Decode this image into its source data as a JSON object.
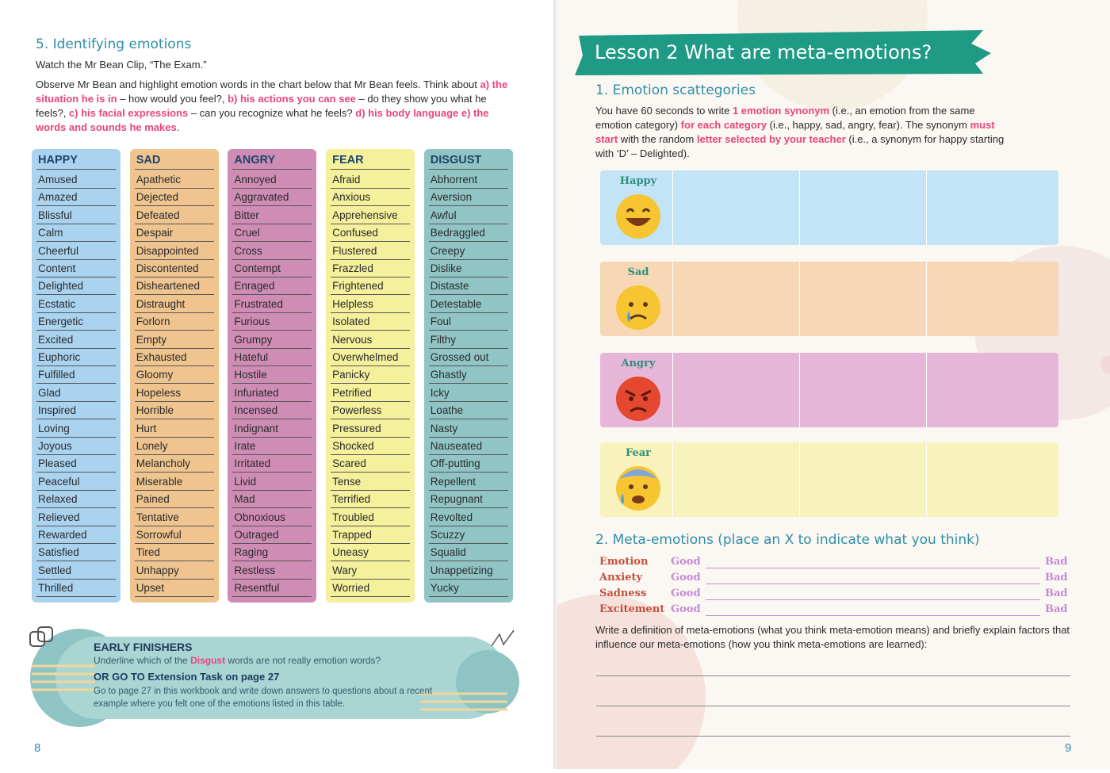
{
  "left_page": {
    "section_title": "5. Identifying emotions",
    "intro": "Watch the Mr Bean Clip, “The Exam.”",
    "instructions": [
      {
        "text": "Observe Mr Bean and highlight emotion words in the chart below that Mr Bean feels. Think about ",
        "emphasis": false
      },
      {
        "text": "a) the situation he is in",
        "emphasis": true
      },
      {
        "text": " – how would you feel?, ",
        "emphasis": false
      },
      {
        "text": "b) his actions you can see",
        "emphasis": true
      },
      {
        "text": " – do they show you what he feels?, ",
        "emphasis": false
      },
      {
        "text": "c) his facial expressions",
        "emphasis": true
      },
      {
        "text": " – can you recognize what he feels? ",
        "emphasis": false
      },
      {
        "text": "d) his body language  e) the words and sounds he makes",
        "emphasis": true
      },
      {
        "text": ".",
        "emphasis": false
      }
    ],
    "emotion_columns": [
      {
        "heading": "HAPPY",
        "color": "#aad3f0",
        "words": [
          "Amused",
          "Amazed",
          "Blissful",
          "Calm",
          "Cheerful",
          "Content",
          "Delighted",
          "Ecstatic",
          "Energetic",
          "Excited",
          "Euphoric",
          "Fulfilled",
          "Glad",
          "Inspired",
          "Loving",
          "Joyous",
          "Pleased",
          "Peaceful",
          "Relaxed",
          "Relieved",
          "Rewarded",
          "Satisfied",
          "Settled",
          "Thrilled"
        ]
      },
      {
        "heading": "SAD",
        "color": "#efc48f",
        "words": [
          "Apathetic",
          "Dejected",
          "Defeated",
          "Despair",
          "Disappointed",
          "Discontented",
          "Disheartened",
          "Distraught",
          "Forlorn",
          "Empty",
          "Exhausted",
          "Gloomy",
          "Hopeless",
          "Horrible",
          "Hurt",
          "Lonely",
          "Melancholy",
          "Miserable",
          "Pained",
          "Tentative",
          "Sorrowful",
          "Tired",
          "Unhappy",
          "Upset"
        ]
      },
      {
        "heading": "ANGRY",
        "color": "#cf8db5",
        "words": [
          "Annoyed",
          "Aggravated",
          "Bitter",
          "Cruel",
          "Cross",
          "Contempt",
          "Enraged",
          "Frustrated",
          "Furious",
          "Grumpy",
          "Hateful",
          "Hostile",
          "Infuriated",
          "Incensed",
          "Indignant",
          "Irate",
          "Irritated",
          "Livid",
          "Mad",
          "Obnoxious",
          "Outraged",
          "Raging",
          "Restless",
          "Resentful"
        ]
      },
      {
        "heading": "FEAR",
        "color": "#f5f09c",
        "words": [
          "Afraid",
          "Anxious",
          "Apprehensive",
          "Confused",
          "Flustered",
          "Frazzled",
          "Frightened",
          "Helpless",
          "Isolated",
          "Nervous",
          "Overwhelmed",
          "Panicky",
          "Petrified",
          "Powerless",
          "Pressured",
          "Shocked",
          "Scared",
          "Tense",
          "Terrified",
          "Troubled",
          "Trapped",
          "Uneasy",
          "Wary",
          "Worried"
        ]
      },
      {
        "heading": "DISGUST",
        "color": "#91c5c5",
        "words": [
          "Abhorrent",
          "Aversion",
          "Awful",
          "Bedraggled",
          "Creepy",
          "Dislike",
          "Distaste",
          "Detestable",
          "Foul",
          "Filthy",
          "Grossed out",
          "Ghastly",
          "Icky",
          "Loathe",
          "Nasty",
          "Nauseated",
          "Off-putting",
          "Repellent",
          "Repugnant",
          "Revolted",
          "Scuzzy",
          "Squalid",
          "Unappetizing",
          "Yucky"
        ]
      }
    ],
    "early_finishers": {
      "title": "EARLY FINISHERS",
      "task": [
        {
          "text": "Underline which of the ",
          "emphasis": false
        },
        {
          "text": "Disgust",
          "emphasis": true
        },
        {
          "text": " words are not really emotion words?",
          "emphasis": false
        }
      ],
      "extension_title": "OR GO TO Extension Task on page 27",
      "extension_text": "Go to page 27 in this workbook and write down answers to questions about a recent example where you felt one of the emotions listed in this table."
    },
    "page_number": "8"
  },
  "right_page": {
    "lesson_title": "Lesson 2 What are meta-emotions?",
    "section1_title": "1. Emotion scattegories",
    "section1_text": [
      {
        "text": "You have 60 seconds to write ",
        "emphasis": false
      },
      {
        "text": "1 emotion synonym",
        "emphasis": true
      },
      {
        "text": " (i.e., an emotion from the same emotion category) ",
        "emphasis": false
      },
      {
        "text": "for each category",
        "emphasis": true
      },
      {
        "text": " (i.e., happy, sad, angry, fear). The synonym ",
        "emphasis": false
      },
      {
        "text": "must start",
        "emphasis": true
      },
      {
        "text": " with the random ",
        "emphasis": false
      },
      {
        "text": "letter selected by your teacher",
        "emphasis": true
      },
      {
        "text": " (i.e., a synonym for happy starting with ‘D’ – Delighted).",
        "emphasis": false
      }
    ],
    "categories": [
      {
        "label": "Happy",
        "color": "#c2e4f6"
      },
      {
        "label": "Sad",
        "color": "#f8d7b6"
      },
      {
        "label": "Angry",
        "color": "#e6b6d8"
      },
      {
        "label": "Fear",
        "color": "#f8f3bd"
      }
    ],
    "section2_title": "2. Meta-emotions (place an X to indicate what you think)",
    "scale_rows": [
      {
        "emotion": "Emotion",
        "left": "Good",
        "right": "Bad"
      },
      {
        "emotion": "Anxiety",
        "left": "Good",
        "right": "Bad"
      },
      {
        "emotion": "Sadness",
        "left": "Good",
        "right": "Bad"
      },
      {
        "emotion": "Excitement",
        "left": "Good",
        "right": "Bad"
      }
    ],
    "definition_prompt": "Write a definition of meta-emotions (what you think meta-emotion means) and briefly explain factors that influence our meta-emotions (how you think meta-emotions are learned):",
    "page_number": "9"
  }
}
